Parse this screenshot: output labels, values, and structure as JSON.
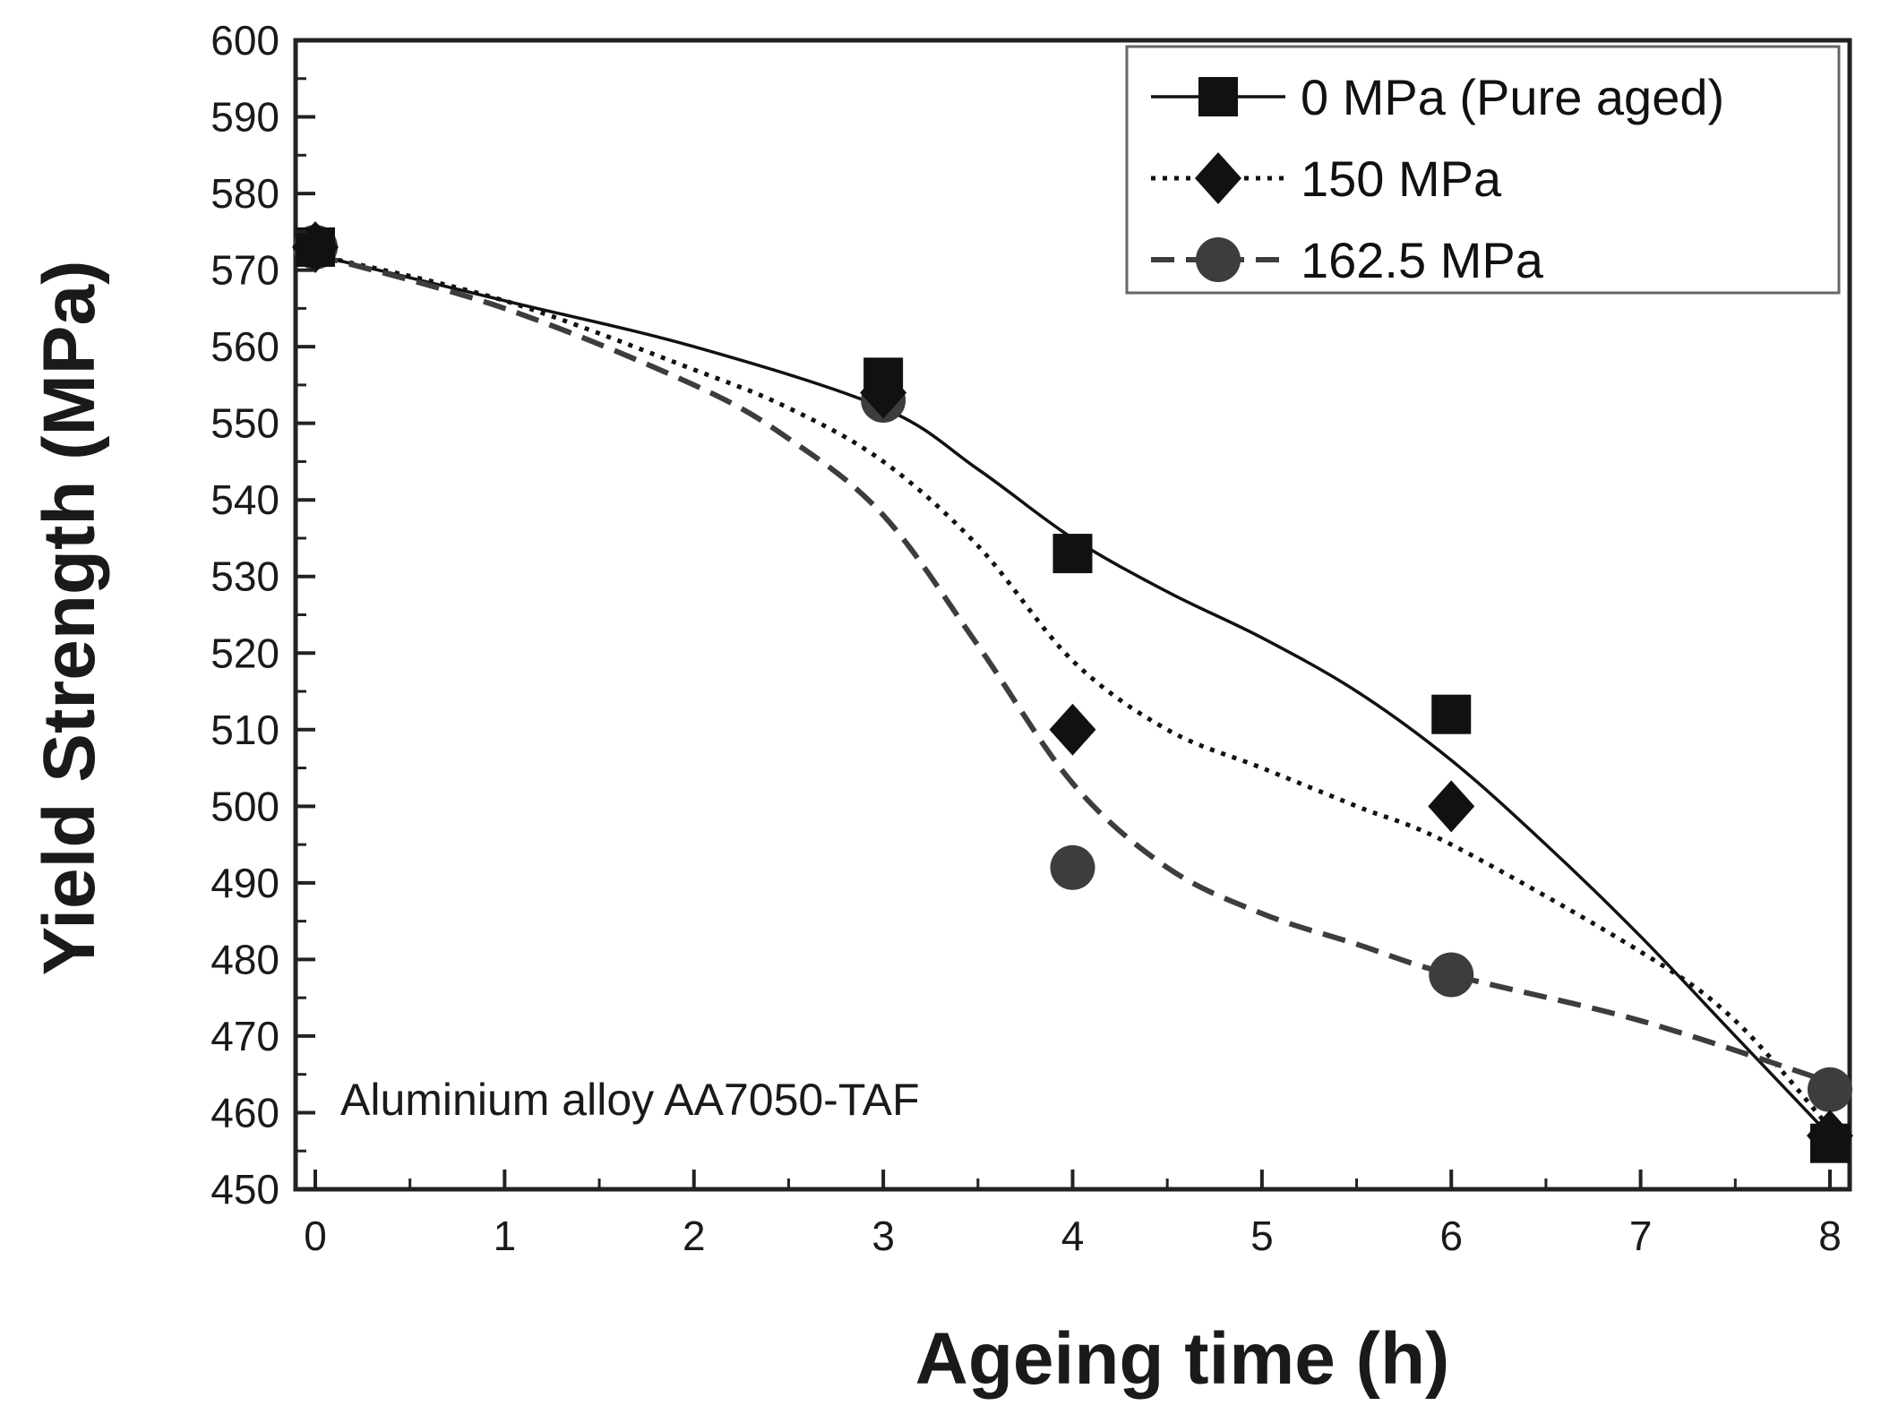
{
  "chart_data": {
    "type": "line",
    "title": "",
    "xlabel": "Ageing time (h)",
    "ylabel": "Yield Strength (MPa)",
    "xlim": [
      0,
      8
    ],
    "ylim": [
      450,
      600
    ],
    "x_ticks": [
      0,
      1,
      2,
      3,
      4,
      5,
      6,
      7,
      8
    ],
    "x_tick_labels": [
      "0",
      "1",
      "2",
      "3",
      "4",
      "5",
      "6",
      "7",
      "8"
    ],
    "y_ticks": [
      450,
      460,
      470,
      480,
      490,
      500,
      510,
      520,
      530,
      540,
      550,
      560,
      570,
      580,
      590,
      600
    ],
    "y_tick_labels": [
      "450",
      "460",
      "470",
      "480",
      "490",
      "500",
      "510",
      "520",
      "530",
      "540",
      "550",
      "560",
      "570",
      "580",
      "590",
      "600"
    ],
    "grid": false,
    "legend_position": "top-right",
    "annotation": "Aluminium alloy AA7050-TAF",
    "series": [
      {
        "name": "0 MPa (Pure aged)",
        "marker": "square",
        "line_style": "solid",
        "color": "#111111",
        "x": [
          0,
          3,
          4,
          6,
          8
        ],
        "y": [
          573,
          556,
          533,
          512,
          456
        ],
        "fit_x": [
          0,
          1,
          2,
          3,
          3.5,
          4,
          4.5,
          5,
          5.5,
          6,
          6.5,
          7,
          7.5,
          8
        ],
        "fit_y": [
          572,
          566,
          560,
          552,
          544,
          535,
          528,
          522,
          515,
          506,
          495,
          483,
          470,
          457
        ]
      },
      {
        "name": "150 MPa",
        "marker": "diamond",
        "line_style": "dotted",
        "color": "#111111",
        "x": [
          0,
          3,
          4,
          6,
          8
        ],
        "y": [
          573,
          554,
          510,
          500,
          457
        ],
        "fit_x": [
          0,
          1,
          2,
          2.5,
          3,
          3.5,
          4,
          4.5,
          5,
          5.5,
          6,
          7,
          7.5,
          8
        ],
        "fit_y": [
          572,
          566,
          557,
          552,
          545,
          534,
          519,
          510,
          505,
          500,
          495,
          481,
          472,
          458
        ]
      },
      {
        "name": "162.5 MPa",
        "marker": "circle",
        "line_style": "dashed",
        "color": "#3d3d3d",
        "x": [
          0,
          3,
          4,
          6,
          8
        ],
        "y": [
          573,
          553,
          492,
          478,
          463
        ],
        "fit_x": [
          0,
          1,
          2,
          2.5,
          3,
          3.5,
          4,
          4.5,
          5,
          5.5,
          6,
          7,
          8
        ],
        "fit_y": [
          572,
          565,
          555,
          548,
          538,
          521,
          503,
          492,
          486,
          482,
          478,
          472,
          464
        ]
      }
    ]
  }
}
